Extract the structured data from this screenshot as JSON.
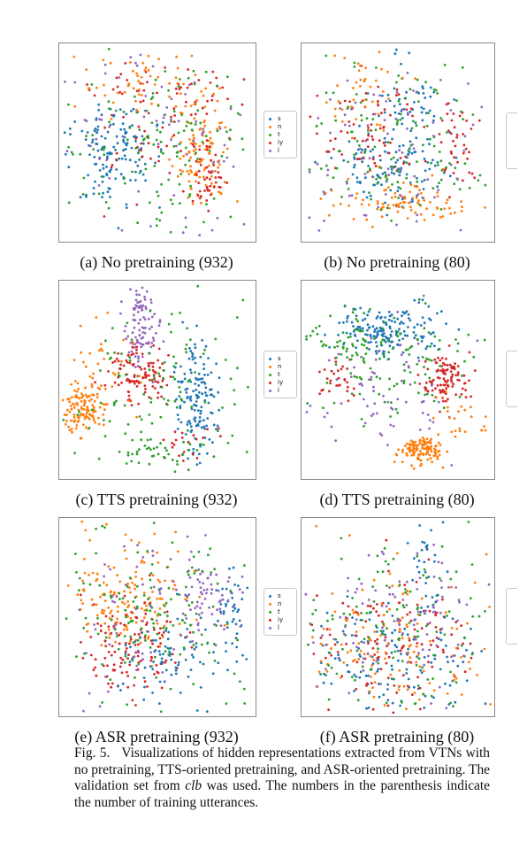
{
  "colors": {
    "s": "#1f77b4",
    "n": "#ff7f0e",
    "t": "#2ca02c",
    "iy": "#d62728",
    "l": "#9467bd"
  },
  "legend_labels": [
    "s",
    "n",
    "t",
    "iy",
    "l"
  ],
  "panels": [
    {
      "caption": "(a) No pretraining (932)"
    },
    {
      "caption": "(b) No pretraining (80)"
    },
    {
      "caption": "(c) TTS pretraining (932)"
    },
    {
      "caption": "(d) TTS pretraining (80)"
    },
    {
      "caption": "(e) ASR pretraining (932)"
    },
    {
      "caption": "(f) ASR pretraining (80)"
    }
  ],
  "figure_caption": {
    "label": "Fig. 5.",
    "text_before_italic": "Visualizations of hidden representations extracted from VTNs with no pretraining, TTS-oriented pretraining, and ASR-oriented pretraining. The validation set from ",
    "italic": "clb",
    "text_after_italic": " was used. The numbers in the parenthesis indicate the number of training utterances."
  }
}
